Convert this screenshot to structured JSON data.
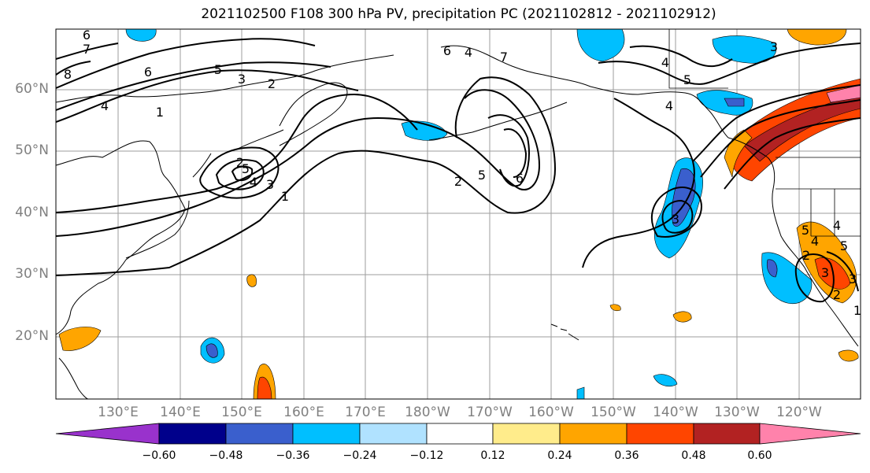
{
  "title": "2021102500 F108 300 hPa PV, precipitation PC (2021102812 - 2021102912)",
  "lon_labels": [
    "130°E",
    "140°E",
    "150°E",
    "160°E",
    "170°E",
    "180°W",
    "170°W",
    "160°W",
    "150°W",
    "140°W",
    "130°W",
    "120°W"
  ],
  "lat_labels": [
    "60°N",
    "50°N",
    "40°N",
    "30°N",
    "20°N"
  ],
  "contour_labels": [
    "6",
    "7",
    "5",
    "3",
    "2",
    "4",
    "1",
    "8",
    "6",
    "5",
    "2",
    "1",
    "4",
    "3",
    "2",
    "4",
    "5",
    "6",
    "3",
    "5",
    "4",
    "3",
    "3",
    "4",
    "2",
    "5",
    "4",
    "3",
    "2",
    "1",
    "7",
    "6",
    "4",
    "5"
  ],
  "colorbar": {
    "tick_labels": [
      "−0.60",
      "−0.48",
      "−0.36",
      "−0.24",
      "−0.12",
      "0.12",
      "0.24",
      "0.36",
      "0.48",
      "0.60"
    ],
    "colors": [
      "#9932cc",
      "#00008b",
      "#3a5fcd",
      "#00bfff",
      "#b0e2ff",
      "#ffffff",
      "#ffec8b",
      "#ffa500",
      "#ff4500",
      "#b22222",
      "#ff82ab"
    ]
  },
  "colors": {
    "gridline": "#9e9e9e",
    "contour": "#000000",
    "land": "#000000"
  }
}
